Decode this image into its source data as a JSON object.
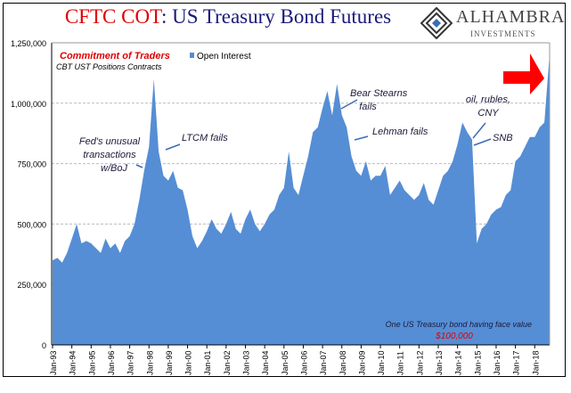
{
  "title_red": "CFTC COT",
  "title_rest": ": US Treasury Bond Futures",
  "logo": {
    "name": "ALHAMBRA",
    "sub": "INVESTMENTS"
  },
  "chart_data": {
    "type": "area",
    "legend": "Open Interest",
    "legend_position": "top",
    "series_color": "#558ED5",
    "ylim": [
      0,
      1250000
    ],
    "yticks": [
      0,
      250000,
      500000,
      750000,
      1000000,
      1250000
    ],
    "ytick_labels": [
      "0",
      "250,000",
      "500,000",
      "750,000",
      "1,000,000",
      "1,250,000"
    ],
    "xtick_labels": [
      "Jan-93",
      "Jan-94",
      "Jan-95",
      "Jan-96",
      "Jan-97",
      "Jan-98",
      "Jan-99",
      "Jan-00",
      "Jan-01",
      "Jan-02",
      "Jan-03",
      "Jan-04",
      "Jan-05",
      "Jan-06",
      "Jan-07",
      "Jan-08",
      "Jan-09",
      "Jan-10",
      "Jan-11",
      "Jan-12",
      "Jan-13",
      "Jan-14",
      "Jan-15",
      "Jan-16",
      "Jan-17",
      "Jan-18"
    ],
    "grid": "horizontal dashed",
    "x_start": "Jan-93",
    "x_frequency": "quarterly",
    "values": [
      350000,
      360000,
      340000,
      380000,
      440000,
      500000,
      420000,
      430000,
      420000,
      400000,
      380000,
      440000,
      400000,
      420000,
      380000,
      430000,
      450000,
      500000,
      600000,
      720000,
      820000,
      1100000,
      800000,
      700000,
      680000,
      720000,
      650000,
      640000,
      560000,
      450000,
      400000,
      430000,
      470000,
      520000,
      480000,
      460000,
      500000,
      550000,
      480000,
      460000,
      520000,
      560000,
      500000,
      470000,
      500000,
      540000,
      560000,
      620000,
      650000,
      800000,
      650000,
      620000,
      700000,
      780000,
      880000,
      900000,
      980000,
      1050000,
      950000,
      1080000,
      950000,
      900000,
      780000,
      720000,
      700000,
      760000,
      680000,
      700000,
      700000,
      740000,
      620000,
      650000,
      680000,
      640000,
      620000,
      600000,
      620000,
      670000,
      600000,
      580000,
      640000,
      700000,
      720000,
      760000,
      830000,
      920000,
      880000,
      850000,
      420000,
      480000,
      500000,
      540000,
      560000,
      570000,
      620000,
      640000,
      760000,
      780000,
      820000,
      860000,
      860000,
      900000,
      920000,
      1180000
    ],
    "annotations": {
      "heading": "Commitment of Traders",
      "subheading": "CBT UST Positions Contracts",
      "fed": [
        "Fed's unusual",
        "transactions",
        "w/BoJ"
      ],
      "ltcm": "LTCM fails",
      "bear": [
        "Bear Stearns",
        "fails"
      ],
      "lehman": "Lehman fails",
      "oil": [
        "oil, rubles,",
        "CNY"
      ],
      "snb": "SNB",
      "note": "One US Treasury bond having face value",
      "note_value": "$100,000"
    },
    "accent_red": "#FF0000"
  }
}
